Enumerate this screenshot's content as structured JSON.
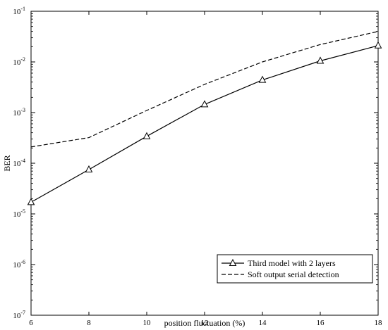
{
  "chart_data": {
    "type": "line",
    "title": "",
    "xlabel": "position fluctuation (%)",
    "ylabel": "BER",
    "yscale": "log",
    "xlim": [
      6,
      18
    ],
    "ylim": [
      1e-07,
      0.1
    ],
    "x_ticks": [
      6,
      8,
      10,
      12,
      14,
      16,
      18
    ],
    "y_ticks": [
      {
        "base": "10",
        "exp": "-7"
      },
      {
        "base": "10",
        "exp": "-6"
      },
      {
        "base": "10",
        "exp": "-5"
      },
      {
        "base": "10",
        "exp": "-4"
      },
      {
        "base": "10",
        "exp": "-3"
      },
      {
        "base": "10",
        "exp": "-2"
      },
      {
        "base": "10",
        "exp": "-1"
      }
    ],
    "grid": false,
    "legend_position": "bottom-right",
    "series": [
      {
        "name": "Third model with 2 layers",
        "style": "solid",
        "marker": "triangle",
        "color": "#000000",
        "x": [
          6,
          8,
          10,
          12,
          14,
          16,
          18
        ],
        "y": [
          1.7e-05,
          7.5e-05,
          0.00034,
          0.00145,
          0.0044,
          0.0105,
          0.021
        ]
      },
      {
        "name": "Soft output serial detection",
        "style": "dashed",
        "marker": "none",
        "color": "#000000",
        "x": [
          6,
          8,
          10,
          12,
          14,
          16,
          18
        ],
        "y": [
          0.00021,
          0.00032,
          0.0011,
          0.0036,
          0.01,
          0.022,
          0.04
        ]
      }
    ]
  }
}
